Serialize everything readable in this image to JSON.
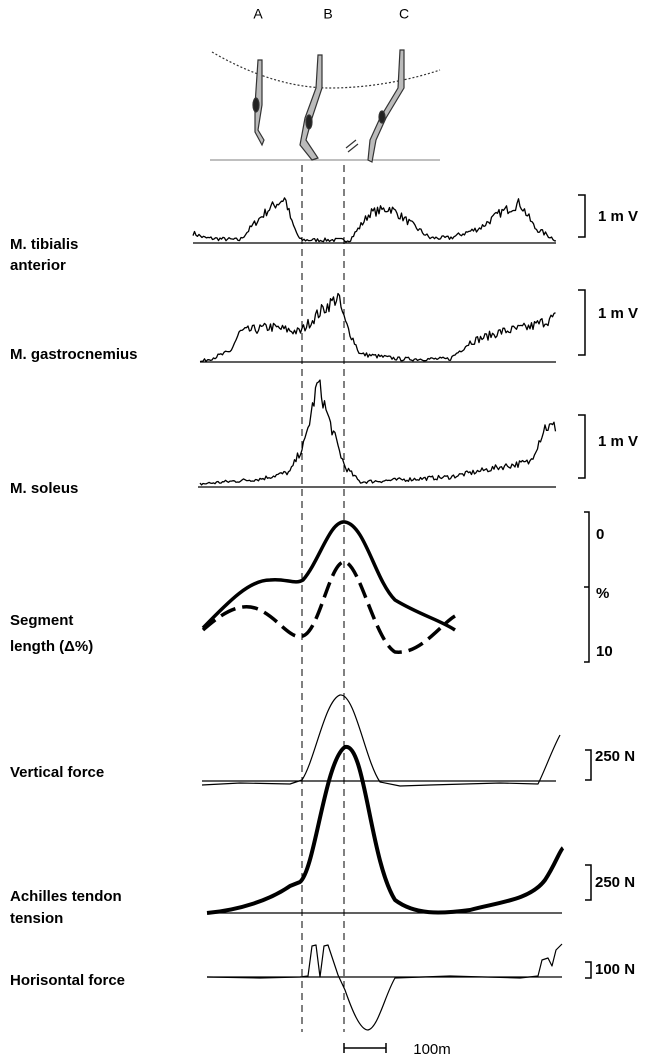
{
  "phases": [
    "A",
    "B",
    "C"
  ],
  "traces": [
    {
      "label": [
        "M. tibialis",
        "anterior"
      ],
      "scale": [
        "1 m V"
      ]
    },
    {
      "label": [
        "M. gastrocnemius"
      ],
      "scale": [
        "1 m V"
      ]
    },
    {
      "label": [
        "M. soleus"
      ],
      "scale": [
        "1 m V"
      ]
    },
    {
      "label": [
        "Segment",
        "length (Δ%)"
      ],
      "scale": [
        "0",
        "%",
        "10"
      ]
    },
    {
      "label": [
        "Vertical force"
      ],
      "scale": [
        "250 N"
      ]
    },
    {
      "label": [
        "Achilles tendon",
        "tension"
      ],
      "scale": [
        "250 N"
      ]
    },
    {
      "label": [
        "Horisontal force"
      ],
      "scale": [
        "100 N"
      ]
    }
  ],
  "time_scale": "100m"
}
